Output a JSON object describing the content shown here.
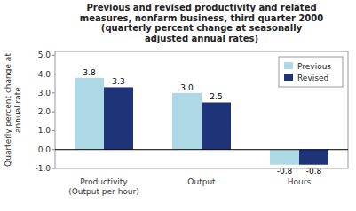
{
  "chart_data": {
    "type": "bar",
    "title": "Previous and revised productivity and related\nmeasures, nonfarm business, third quarter 2000\n(quarterly percent change at seasonally\nadjusted annual rates)",
    "y_label": "Quarterly percent change at\nannual rate",
    "categories": [
      "Productivity\n(Output per hour)",
      "Output",
      "Hours"
    ],
    "series": [
      {
        "name": "Previous",
        "color": "#add8e6",
        "values": [
          3.8,
          3.0,
          -0.8
        ],
        "value_labels": [
          "3.8",
          "3.0",
          "-0.8"
        ]
      },
      {
        "name": "Revised",
        "color": "#1f3478",
        "values": [
          3.3,
          2.5,
          -0.8
        ],
        "value_labels": [
          "3.3",
          "2.5",
          "-0.8"
        ]
      }
    ],
    "ylim": [
      -1.0,
      5.2
    ],
    "yticks": [
      {
        "value": -1.0,
        "label": "-1.0"
      },
      {
        "value": 0.0,
        "label": "0.0"
      },
      {
        "value": 1.0,
        "label": "1.0"
      },
      {
        "value": 2.0,
        "label": "2.0"
      },
      {
        "value": 3.0,
        "label": "3.0"
      },
      {
        "value": 4.0,
        "label": "4.0"
      },
      {
        "value": 5.0,
        "label": "5.0"
      }
    ],
    "data_labels": true,
    "legend": "upper right",
    "grid": false
  }
}
